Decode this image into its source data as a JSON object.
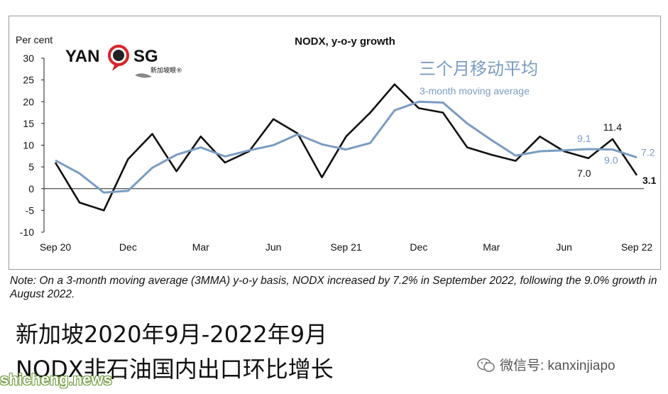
{
  "chart_data": {
    "type": "line",
    "title": "NODX, y-o-y growth",
    "ylabel": "Per cent",
    "ylim": [
      -10,
      30
    ],
    "yticks": [
      30,
      25,
      20,
      15,
      10,
      5,
      0,
      -5,
      -10
    ],
    "xtick_labels": [
      {
        "i": 0,
        "label": "Sep 20"
      },
      {
        "i": 3,
        "label": "Dec"
      },
      {
        "i": 6,
        "label": "Mar"
      },
      {
        "i": 9,
        "label": "Jun"
      },
      {
        "i": 12,
        "label": "Sep 21"
      },
      {
        "i": 15,
        "label": "Dec"
      },
      {
        "i": 18,
        "label": "Mar"
      },
      {
        "i": 21,
        "label": "Jun"
      },
      {
        "i": 24,
        "label": "Sep 22"
      }
    ],
    "x": [
      "Sep 20",
      "Oct 20",
      "Nov 20",
      "Dec 20",
      "Jan 21",
      "Feb 21",
      "Mar 21",
      "Apr 21",
      "May 21",
      "Jun 21",
      "Jul 21",
      "Aug 21",
      "Sep 21",
      "Oct 21",
      "Nov 21",
      "Dec 21",
      "Jan 22",
      "Feb 22",
      "Mar 22",
      "Apr 22",
      "May 22",
      "Jun 22",
      "Jul 22",
      "Aug 22",
      "Sep 22"
    ],
    "series": [
      {
        "name": "",
        "color": "#111111",
        "values": [
          6.0,
          -3.2,
          -5.0,
          6.8,
          12.6,
          4.0,
          12.0,
          6.0,
          8.6,
          16.0,
          12.7,
          2.6,
          12.0,
          17.5,
          24.0,
          18.5,
          17.5,
          9.5,
          7.8,
          6.4,
          12.0,
          8.6,
          7.0,
          11.4,
          3.1
        ]
      },
      {
        "name": "三个月移动平均",
        "name_en": "3-month moving average",
        "color": "#7b9cc2",
        "values": [
          6.5,
          3.5,
          -0.9,
          -0.5,
          4.8,
          7.8,
          9.5,
          7.4,
          8.8,
          10.0,
          12.5,
          10.2,
          9.0,
          10.5,
          18.0,
          20.0,
          19.8,
          15.0,
          11.2,
          7.6,
          8.6,
          8.8,
          9.1,
          9.0,
          7.2
        ]
      }
    ],
    "annotations": [
      {
        "text": "9.1",
        "series": 1,
        "i": 22
      },
      {
        "text": "11.4",
        "series": 0,
        "i": 23
      },
      {
        "text": "7.2",
        "series": 1,
        "i": 24
      },
      {
        "text": "7.0",
        "series": 0,
        "i": 22
      },
      {
        "text": "9.0",
        "series": 1,
        "i": 23
      },
      {
        "text": "3.1",
        "series": 0,
        "i": 24
      }
    ],
    "grid": false,
    "legend": "top-right"
  },
  "logo": {
    "text_left": "YAN",
    "text_right": "SG",
    "sub": "新加坡眼®"
  },
  "note": "Note: On a 3-month moving average (3MMA) y-o-y basis, NODX increased by 7.2% in September 2022, following the 9.0% growth in August 2022.",
  "caption_line1": "新加坡2020年9月-2022年9月",
  "caption_line2": "NODX非石油国内出口环比增长",
  "watermark": "shicheng.news",
  "wechat": "微信号: kanxinjiapo"
}
